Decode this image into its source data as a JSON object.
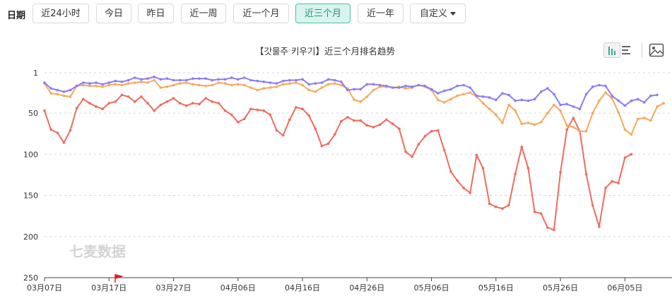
{
  "filters": {
    "label": "日期",
    "buttons": [
      {
        "label": "近24小时",
        "active": false
      },
      {
        "label": "今日",
        "active": false
      },
      {
        "label": "昨日",
        "active": false
      },
      {
        "label": "近一周",
        "active": false
      },
      {
        "label": "近一个月",
        "active": false
      },
      {
        "label": "近三个月",
        "active": true
      },
      {
        "label": "近一年",
        "active": false
      },
      {
        "label": "自定义",
        "active": false,
        "dropdown": true
      }
    ]
  },
  "toolbar": {
    "icons": [
      "bar-chart-icon",
      "list-icon",
      "image-download-icon"
    ]
  },
  "watermark": "七麦数据",
  "chart_data": {
    "type": "line",
    "title": "【갓물주 키우기】近三个月排名趋势",
    "y_inverted": true,
    "ylim": [
      1,
      250
    ],
    "yticks": [
      1,
      50,
      100,
      150,
      200,
      250
    ],
    "xticks": [
      "03月07日",
      "03月17日",
      "03月27日",
      "04月06日",
      "04月16日",
      "04月26日",
      "05月06日",
      "05月16日",
      "05月26日",
      "06月05日"
    ],
    "x_start": "2024-03-07",
    "flag_marker_date": "03月17日",
    "grid": "horizontal-dashed",
    "series": [
      {
        "color": "#8b7cf6",
        "values": [
          13,
          20,
          22,
          24,
          22,
          17,
          13,
          14,
          13,
          15,
          13,
          11,
          12,
          10,
          7,
          9,
          8,
          6,
          9,
          8,
          10,
          10,
          10,
          8,
          8,
          8,
          10,
          9,
          9,
          7,
          9,
          7,
          10,
          11,
          12,
          13,
          14,
          11,
          10,
          10,
          9,
          15,
          14,
          13,
          9,
          10,
          12,
          22,
          21,
          21,
          15,
          15,
          16,
          17,
          19,
          19,
          17,
          18,
          16,
          17,
          21,
          26,
          23,
          21,
          17,
          16,
          19,
          29,
          30,
          31,
          34,
          26,
          28,
          35,
          34,
          35,
          33,
          24,
          20,
          27,
          40,
          39,
          42,
          45,
          27,
          18,
          16,
          17,
          29,
          35,
          41,
          35,
          33,
          37,
          29,
          28
        ]
      },
      {
        "color": "#f5a95b",
        "values": [
          14,
          26,
          27,
          29,
          30,
          17,
          16,
          17,
          17,
          18,
          16,
          15,
          16,
          14,
          13,
          12,
          13,
          10,
          19,
          18,
          16,
          14,
          13,
          15,
          16,
          17,
          16,
          13,
          14,
          16,
          15,
          16,
          19,
          22,
          20,
          19,
          18,
          15,
          14,
          13,
          16,
          22,
          24,
          19,
          15,
          14,
          16,
          20,
          34,
          36,
          30,
          22,
          18,
          18,
          19,
          18,
          20,
          19,
          16,
          18,
          22,
          34,
          37,
          33,
          29,
          27,
          25,
          30,
          38,
          45,
          52,
          62,
          40,
          47,
          63,
          62,
          64,
          61,
          50,
          40,
          47,
          65,
          67,
          72,
          72,
          50,
          35,
          25,
          32,
          49,
          70,
          76,
          57,
          56,
          59,
          42,
          38
        ]
      },
      {
        "color": "#ef6b5e",
        "values": [
          47,
          70,
          74,
          86,
          71,
          44,
          33,
          38,
          42,
          45,
          38,
          36,
          28,
          30,
          36,
          30,
          38,
          47,
          40,
          36,
          32,
          38,
          41,
          38,
          39,
          32,
          36,
          38,
          47,
          52,
          61,
          57,
          45,
          46,
          47,
          52,
          71,
          77,
          58,
          43,
          45,
          53,
          69,
          90,
          87,
          76,
          60,
          55,
          59,
          59,
          65,
          67,
          64,
          58,
          63,
          69,
          97,
          103,
          88,
          78,
          72,
          71,
          95,
          121,
          132,
          141,
          147,
          101,
          117,
          160,
          164,
          166,
          162,
          124,
          91,
          117,
          170,
          172,
          189,
          192,
          122,
          70,
          56,
          72,
          124,
          162,
          188,
          141,
          133,
          135,
          104,
          100
        ]
      }
    ]
  }
}
